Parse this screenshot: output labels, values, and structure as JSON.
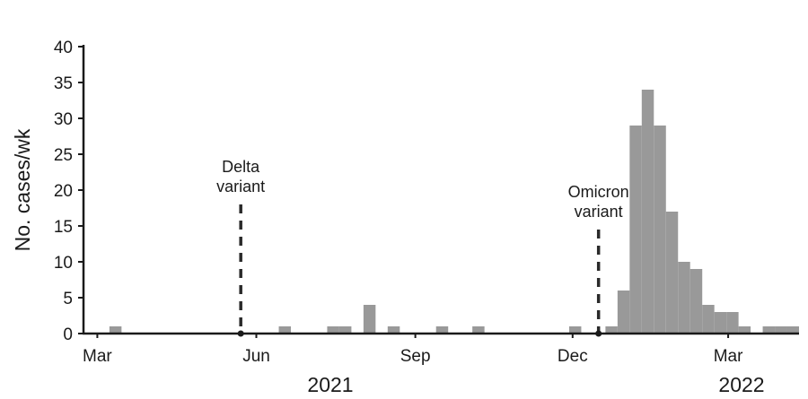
{
  "chart_data": {
    "type": "bar",
    "ylabel": "No. cases/wk",
    "ylim": [
      0,
      40
    ],
    "yticks": [
      0,
      5,
      10,
      15,
      20,
      25,
      30,
      35,
      40
    ],
    "xticks": [
      {
        "label": "Mar",
        "date": "2021-03-01"
      },
      {
        "label": "Jun",
        "date": "2021-06-01"
      },
      {
        "label": "Sep",
        "date": "2021-09-01"
      },
      {
        "label": "Dec",
        "date": "2021-12-01"
      },
      {
        "label": "Mar",
        "date": "2022-03-01"
      }
    ],
    "years": [
      {
        "label": "2021"
      },
      {
        "label": "2022"
      }
    ],
    "bin_width_days": 7,
    "x": [
      "2021-03-08",
      "2021-06-14",
      "2021-07-12",
      "2021-07-19",
      "2021-08-02",
      "2021-08-16",
      "2021-09-13",
      "2021-10-04",
      "2021-11-29",
      "2021-12-20",
      "2021-12-27",
      "2022-01-03",
      "2022-01-10",
      "2022-01-17",
      "2022-01-24",
      "2022-01-31",
      "2022-02-07",
      "2022-02-14",
      "2022-02-21",
      "2022-02-28",
      "2022-03-07",
      "2022-03-21",
      "2022-03-28",
      "2022-04-04"
    ],
    "values": [
      1,
      1,
      1,
      1,
      4,
      1,
      1,
      1,
      1,
      1,
      6,
      29,
      34,
      29,
      17,
      10,
      9,
      4,
      3,
      3,
      1,
      1,
      1,
      1
    ],
    "bar_color": "#999999",
    "annotations": [
      {
        "text_lines": [
          "Delta",
          "variant"
        ],
        "date": "2021-05-23",
        "y_top": 18
      },
      {
        "text_lines": [
          "Omicron",
          "variant"
        ],
        "date": "2021-12-16",
        "y_top": 14.5
      }
    ],
    "grid": false
  }
}
